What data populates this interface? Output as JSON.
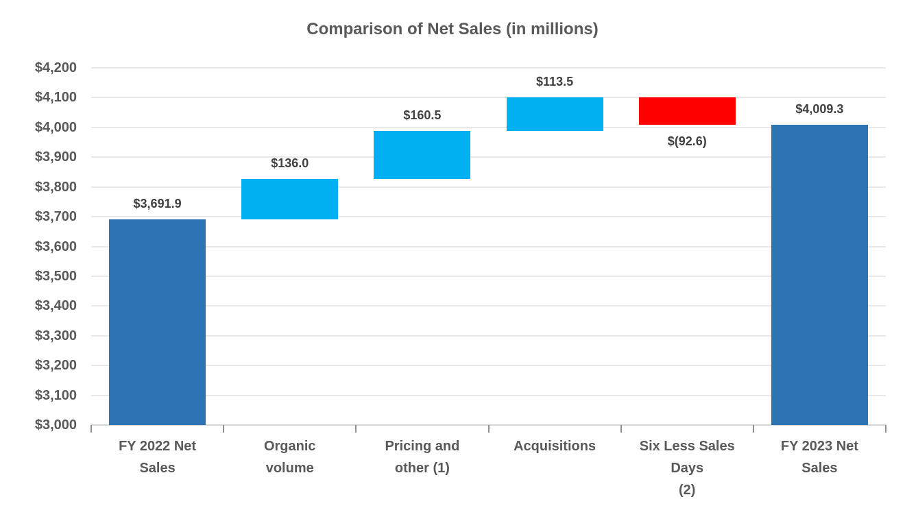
{
  "chart_data": {
    "type": "bar",
    "subtype": "waterfall",
    "title": "Comparison of Net Sales (in millions)",
    "xlabel": "",
    "ylabel": "",
    "grid": true,
    "legend": false,
    "categories": [
      "FY 2022 Net Sales",
      "Organic volume",
      "Pricing and other (1)",
      "Acquisitions",
      "Six Less Sales Days (2)",
      "FY 2023 Net Sales"
    ],
    "category_label_lines": [
      [
        "FY 2022 Net",
        "Sales"
      ],
      [
        "Organic",
        "volume"
      ],
      [
        "Pricing and",
        "other (1)"
      ],
      [
        "Acquisitions"
      ],
      [
        "Six Less Sales",
        "Days",
        "(2)"
      ],
      [
        "FY 2023 Net",
        "Sales"
      ]
    ],
    "bars": [
      {
        "category": "FY 2022 Net Sales",
        "role": "total",
        "value": 3691.9,
        "start": 3000,
        "end": 3691.9,
        "data_label": "$3,691.9",
        "label_position": "above",
        "color": "#2E74B5"
      },
      {
        "category": "Organic volume",
        "role": "increase",
        "value": 136.0,
        "start": 3691.9,
        "end": 3827.9,
        "data_label": "$136.0",
        "label_position": "above",
        "color": "#00B0F0"
      },
      {
        "category": "Pricing and other (1)",
        "role": "increase",
        "value": 160.5,
        "start": 3827.9,
        "end": 3988.4,
        "data_label": "$160.5",
        "label_position": "above",
        "color": "#00B0F0"
      },
      {
        "category": "Acquisitions",
        "role": "increase",
        "value": 113.5,
        "start": 3988.4,
        "end": 4101.9,
        "data_label": "$113.5",
        "label_position": "above",
        "color": "#00B0F0"
      },
      {
        "category": "Six Less Sales Days (2)",
        "role": "decrease",
        "value": -92.6,
        "start": 4101.9,
        "end": 4009.3,
        "data_label": "$(92.6)",
        "label_position": "below",
        "color": "#FF0000"
      },
      {
        "category": "FY 2023 Net Sales",
        "role": "total",
        "value": 4009.3,
        "start": 3000,
        "end": 4009.3,
        "data_label": "$4,009.3",
        "label_position": "above",
        "color": "#2E74B5"
      }
    ],
    "y_axis": {
      "min": 3000,
      "max": 4200,
      "step": 100,
      "tick_labels": [
        "$3,000",
        "$3,100",
        "$3,200",
        "$3,300",
        "$3,400",
        "$3,500",
        "$3,600",
        "$3,700",
        "$3,800",
        "$3,900",
        "$4,000",
        "$4,100",
        "$4,200"
      ]
    },
    "colors": {
      "total_bar": "#2E74B5",
      "increase_bar": "#00B0F0",
      "decrease_bar": "#FF0000",
      "grid_line": "#E8E8E8",
      "axis_line": "#D6D6D6",
      "tick_mark": "#8F8F8F",
      "title_text": "#595959",
      "axis_text": "#595959",
      "data_label_text": "#404040"
    }
  }
}
